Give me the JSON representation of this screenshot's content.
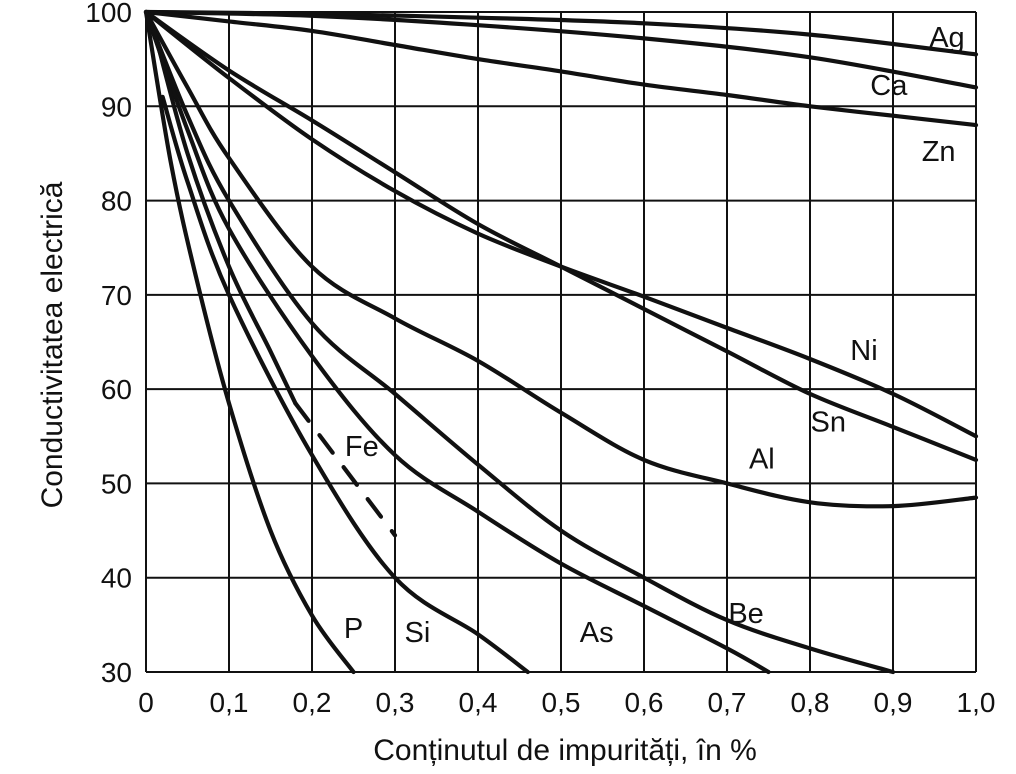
{
  "chart_data": {
    "type": "line",
    "title": "",
    "xlabel": "Conținutul de impurități, în %",
    "ylabel": "Conductivitatea electrică",
    "xlim": [
      0,
      1.0
    ],
    "ylim": [
      30,
      100
    ],
    "x_ticks": [
      0,
      0.1,
      0.2,
      0.3,
      0.4,
      0.5,
      0.6,
      0.7,
      0.8,
      0.9,
      1.0
    ],
    "x_tick_labels": [
      "0",
      "0,1",
      "0,2",
      "0,3",
      "0,4",
      "0,5",
      "0,6",
      "0,7",
      "0,8",
      "0,9",
      "1,0"
    ],
    "y_ticks": [
      30,
      40,
      50,
      60,
      70,
      80,
      90,
      100
    ],
    "y_tick_labels": [
      "30",
      "40",
      "50",
      "60",
      "70",
      "80",
      "90",
      "100"
    ],
    "grid": true,
    "legend": "none",
    "series": [
      {
        "name": "Ag",
        "x": [
          0,
          0.2,
          0.4,
          0.6,
          0.8,
          1.0
        ],
        "y": [
          100,
          99.8,
          99.4,
          98.8,
          97.6,
          95.5
        ]
      },
      {
        "name": "Ca",
        "x": [
          0,
          0.2,
          0.4,
          0.6,
          0.8,
          1.0
        ],
        "y": [
          100,
          99.6,
          98.6,
          97.2,
          95.2,
          92
        ]
      },
      {
        "name": "Zn",
        "x": [
          0,
          0.1,
          0.2,
          0.3,
          0.4,
          0.5,
          0.6,
          0.7,
          0.8,
          0.9,
          1.0
        ],
        "y": [
          100,
          99,
          98,
          96.5,
          95,
          93.7,
          92.3,
          91.2,
          90,
          89,
          88
        ]
      },
      {
        "name": "Ni",
        "x": [
          0,
          0.1,
          0.2,
          0.3,
          0.4,
          0.5,
          0.6,
          0.7,
          0.8,
          0.9,
          1.0
        ],
        "y": [
          100,
          93,
          86.5,
          81,
          76.5,
          73,
          69.8,
          66.5,
          63.2,
          59.5,
          55
        ]
      },
      {
        "name": "Sn",
        "x": [
          0,
          0.1,
          0.2,
          0.3,
          0.4,
          0.5,
          0.6,
          0.7,
          0.8,
          0.9,
          1.0
        ],
        "y": [
          100,
          93.8,
          88.5,
          83,
          77.5,
          73,
          68.5,
          64,
          59.5,
          56,
          52.5
        ]
      },
      {
        "name": "Al",
        "x": [
          0,
          0.05,
          0.1,
          0.2,
          0.3,
          0.4,
          0.5,
          0.6,
          0.7,
          0.8,
          0.9,
          1.0
        ],
        "y": [
          100,
          92,
          84.5,
          73,
          67.5,
          63,
          57.5,
          52.5,
          50,
          48,
          47.6,
          48.5
        ]
      },
      {
        "name": "Be",
        "x": [
          0,
          0.05,
          0.1,
          0.2,
          0.3,
          0.4,
          0.5,
          0.6,
          0.7,
          0.8,
          0.9
        ],
        "y": [
          100,
          89,
          80,
          67,
          59.5,
          52,
          45,
          40,
          35.5,
          32.5,
          30
        ]
      },
      {
        "name": "As",
        "x": [
          0,
          0.05,
          0.1,
          0.2,
          0.3,
          0.4,
          0.5,
          0.6,
          0.7,
          0.75
        ],
        "y": [
          100,
          87.5,
          77,
          63.5,
          53,
          47,
          41.5,
          37,
          32.5,
          30
        ]
      },
      {
        "name": "Fe",
        "x": [
          0.01,
          0.05,
          0.1,
          0.15,
          0.18
        ],
        "y": [
          98,
          85,
          73,
          64,
          58.5
        ],
        "dashed_x": [
          0.18,
          0.3
        ],
        "dashed_y": [
          58.5,
          44.5
        ]
      },
      {
        "name": "Si",
        "x": [
          0.02,
          0.05,
          0.1,
          0.2,
          0.3,
          0.4,
          0.46
        ],
        "y": [
          91,
          82,
          70,
          53,
          40,
          34,
          30
        ]
      },
      {
        "name": "P",
        "x": [
          0,
          0.03,
          0.06,
          0.1,
          0.15,
          0.2,
          0.25
        ],
        "y": [
          100,
          84,
          72,
          58.5,
          45,
          36,
          30
        ]
      }
    ],
    "annotations": [
      {
        "text": "Ag",
        "x": 0.965,
        "y": 96.3
      },
      {
        "text": "Ca",
        "x": 0.895,
        "y": 91.2
      },
      {
        "text": "Zn",
        "x": 0.955,
        "y": 84.2
      },
      {
        "text": "Ni",
        "x": 0.865,
        "y": 63.1
      },
      {
        "text": "Sn",
        "x": 0.822,
        "y": 55.5
      },
      {
        "text": "Al",
        "x": 0.742,
        "y": 51.6
      },
      {
        "text": "Fe",
        "x": 0.26,
        "y": 52.9
      },
      {
        "text": "Be",
        "x": 0.723,
        "y": 35.2
      },
      {
        "text": "As",
        "x": 0.543,
        "y": 33.2
      },
      {
        "text": "Si",
        "x": 0.327,
        "y": 33.2
      },
      {
        "text": "P",
        "x": 0.25,
        "y": 33.6
      }
    ]
  }
}
